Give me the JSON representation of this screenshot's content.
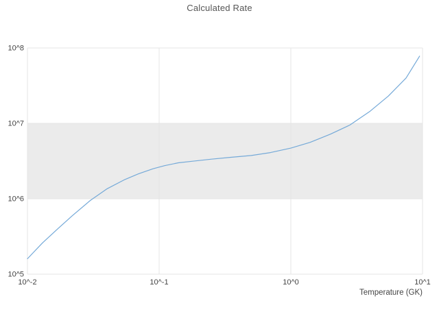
{
  "chart_data": {
    "type": "line",
    "title": "Calculated Rate",
    "xlabel": "Temperature (GK)",
    "ylabel": "",
    "x_scale": "log",
    "y_scale": "log",
    "xlim": [
      0.01,
      10
    ],
    "ylim": [
      100000,
      100000000
    ],
    "grid": true,
    "grid_color": "#e5e5e5",
    "tick_color": "#444444",
    "x_tick_values": [
      0.01,
      0.1,
      1,
      10
    ],
    "x_tick_labels": [
      "10^-2",
      "10^-1",
      "10^0",
      "10^1"
    ],
    "y_tick_values": [
      100000,
      1000000,
      10000000,
      100000000
    ],
    "y_tick_labels": [
      "10^5",
      "10^6",
      "10^7",
      "10^8"
    ],
    "band": {
      "from": 1000000,
      "to": 10000000,
      "color": "#ebebeb",
      "label": "band-1e6-to-1e7"
    },
    "series": [
      {
        "name": "Calculated Rate",
        "color": "#74a9d8",
        "x": [
          0.01,
          0.013,
          0.017,
          0.022,
          0.03,
          0.04,
          0.055,
          0.07,
          0.09,
          0.11,
          0.14,
          0.18,
          0.25,
          0.35,
          0.5,
          0.7,
          1.0,
          1.4,
          2.0,
          2.8,
          4.0,
          5.5,
          7.5,
          9.5
        ],
        "y": [
          160000,
          260000,
          400000,
          600000,
          950000,
          1350000,
          1800000,
          2150000,
          2500000,
          2750000,
          3000000,
          3150000,
          3350000,
          3550000,
          3750000,
          4100000,
          4700000,
          5600000,
          7200000,
          9500000,
          14500000,
          23000000,
          40000000,
          78000000
        ]
      }
    ]
  }
}
